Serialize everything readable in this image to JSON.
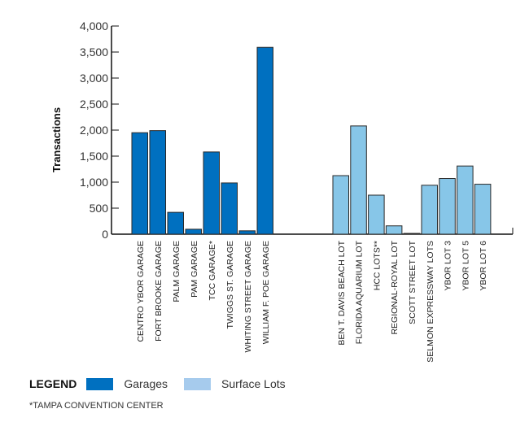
{
  "chart_data": {
    "type": "bar",
    "ylabel": "Transactions",
    "ylim": [
      0,
      4000
    ],
    "yticks": [
      "0",
      "500",
      "1,000",
      "1,500",
      "2,000",
      "2,500",
      "3,000",
      "3,500",
      "4,000"
    ],
    "grid": false,
    "groups": [
      {
        "name": "Garages",
        "color": "#0070c0",
        "categories": [
          "CENTRO YBOR GARAGE",
          "FORT BROOKE GARAGE",
          "PALM GARAGE",
          "PAM GARAGE",
          "TCC  GARAGE*",
          "TWIGGS ST. GARAGE",
          "WHITING STREET GARAGE",
          "WILLIAM F. POE  GARAGE"
        ],
        "values": [
          1950,
          1990,
          420,
          95,
          1580,
          985,
          65,
          3590
        ]
      },
      {
        "name": "Surface Lots",
        "color": "#87c6e8",
        "categories": [
          "BEN T. DAVIS BEACH LOT",
          "FLORIDA AQUARIUM LOT",
          "HCC LOTS**",
          "REGIONAL-ROYAL LOT",
          "SCOTT STREET LOT",
          "SELMON EXPRESSWAY LOTS",
          "YBOR LOT 3",
          "YBOR LOT 5",
          "YBOR LOT 6"
        ],
        "values": [
          1125,
          2080,
          750,
          160,
          15,
          940,
          1070,
          1310,
          960
        ]
      }
    ],
    "legend": {
      "title": "LEGEND",
      "placement": "bottom-left",
      "items": [
        {
          "label": "Garages",
          "color": "#0070c0"
        },
        {
          "label": "Surface Lots",
          "color": "#a6cbed"
        }
      ]
    },
    "footnote": "*TAMPA CONVENTION CENTER"
  }
}
